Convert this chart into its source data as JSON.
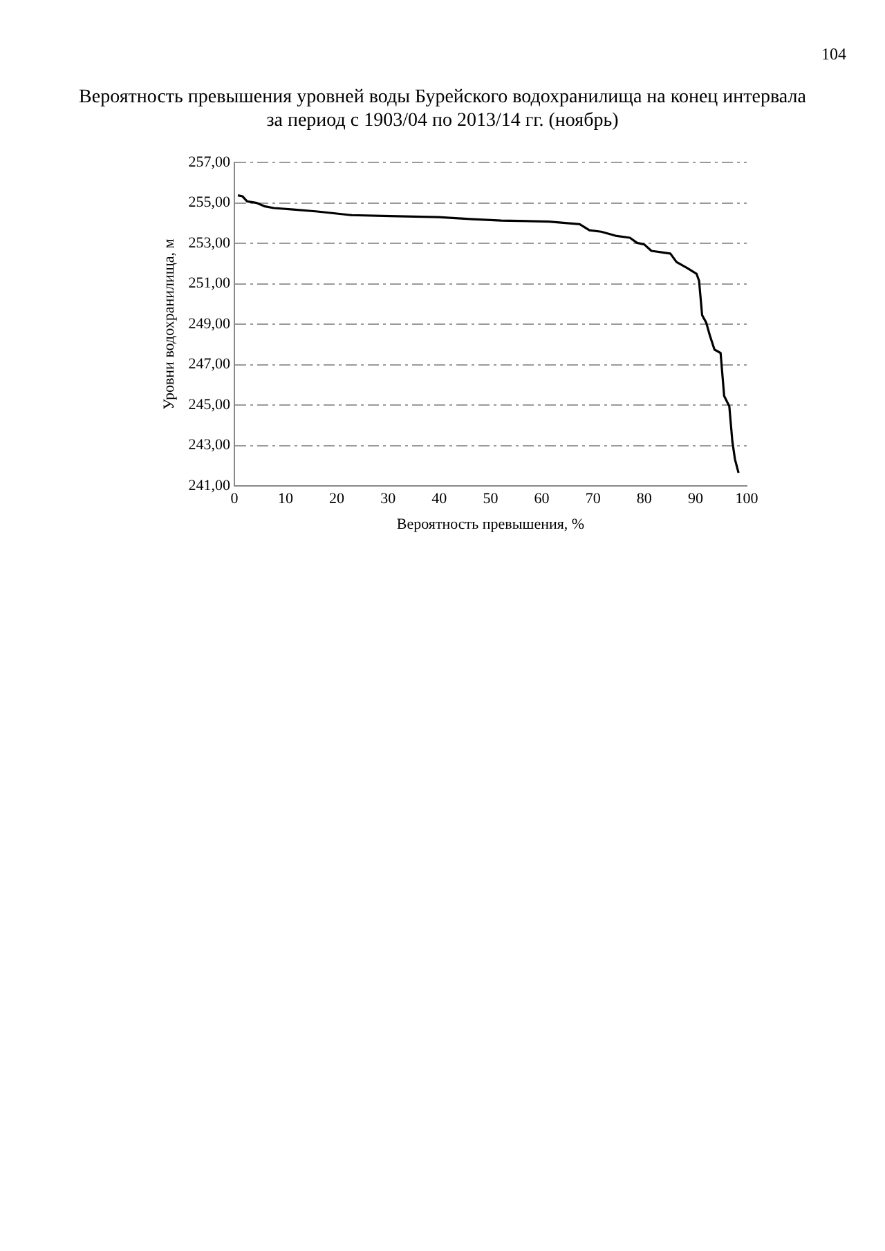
{
  "chart_data": {
    "type": "line",
    "title": "Вероятность превышения уровней воды Бурейского водохранилища на конец интервала\nза период с 1903/04 по 2013/14 гг. (ноябрь)",
    "xlabel": "Вероятность превышения, %",
    "ylabel": "Уровни водохранилища, м",
    "annotations": [
      "104"
    ],
    "series": [
      {
        "color": "#000000",
        "x": [
          0.7,
          1.6,
          2.5,
          4.4,
          6,
          7.7,
          11.5,
          16.2,
          22.8,
          30.4,
          39.8,
          46.5,
          52.1,
          61.4,
          67.4,
          69.3,
          71.6,
          74.4,
          77.2,
          78.6,
          80,
          81.4,
          83.7,
          85.1,
          86.3,
          88.4,
          90.2,
          90.7,
          91.3,
          92.1,
          92.8,
          93.7,
          94.9,
          95.6,
          96.6,
          97.2,
          97.7,
          98.4
        ],
        "values": [
          255.38,
          255.33,
          255.08,
          255.0,
          254.83,
          254.75,
          254.68,
          254.58,
          254.4,
          254.35,
          254.3,
          254.2,
          254.13,
          254.08,
          253.95,
          253.65,
          253.58,
          253.38,
          253.28,
          253.03,
          252.95,
          252.63,
          252.55,
          252.5,
          252.08,
          251.78,
          251.5,
          251.15,
          249.45,
          249.08,
          248.45,
          247.75,
          247.58,
          245.45,
          244.95,
          243.2,
          242.33,
          241.65
        ]
      }
    ],
    "xlim": [
      0,
      100
    ],
    "xticks": [
      0,
      10,
      20,
      30,
      40,
      50,
      60,
      70,
      80,
      90,
      100
    ],
    "ylim": [
      241,
      257
    ],
    "yticks": [
      {
        "value": 241,
        "label": "241,00"
      },
      {
        "value": 243,
        "label": "243,00"
      },
      {
        "value": 245,
        "label": "245,00"
      },
      {
        "value": 247,
        "label": "247,00"
      },
      {
        "value": 249,
        "label": "249,00"
      },
      {
        "value": 251,
        "label": "251,00"
      },
      {
        "value": 253,
        "label": "253,00"
      },
      {
        "value": 255,
        "label": "255,00"
      },
      {
        "value": 257,
        "label": "257,00"
      }
    ],
    "grid": "y",
    "legend": false,
    "marker": "none",
    "line_style": "solid"
  }
}
